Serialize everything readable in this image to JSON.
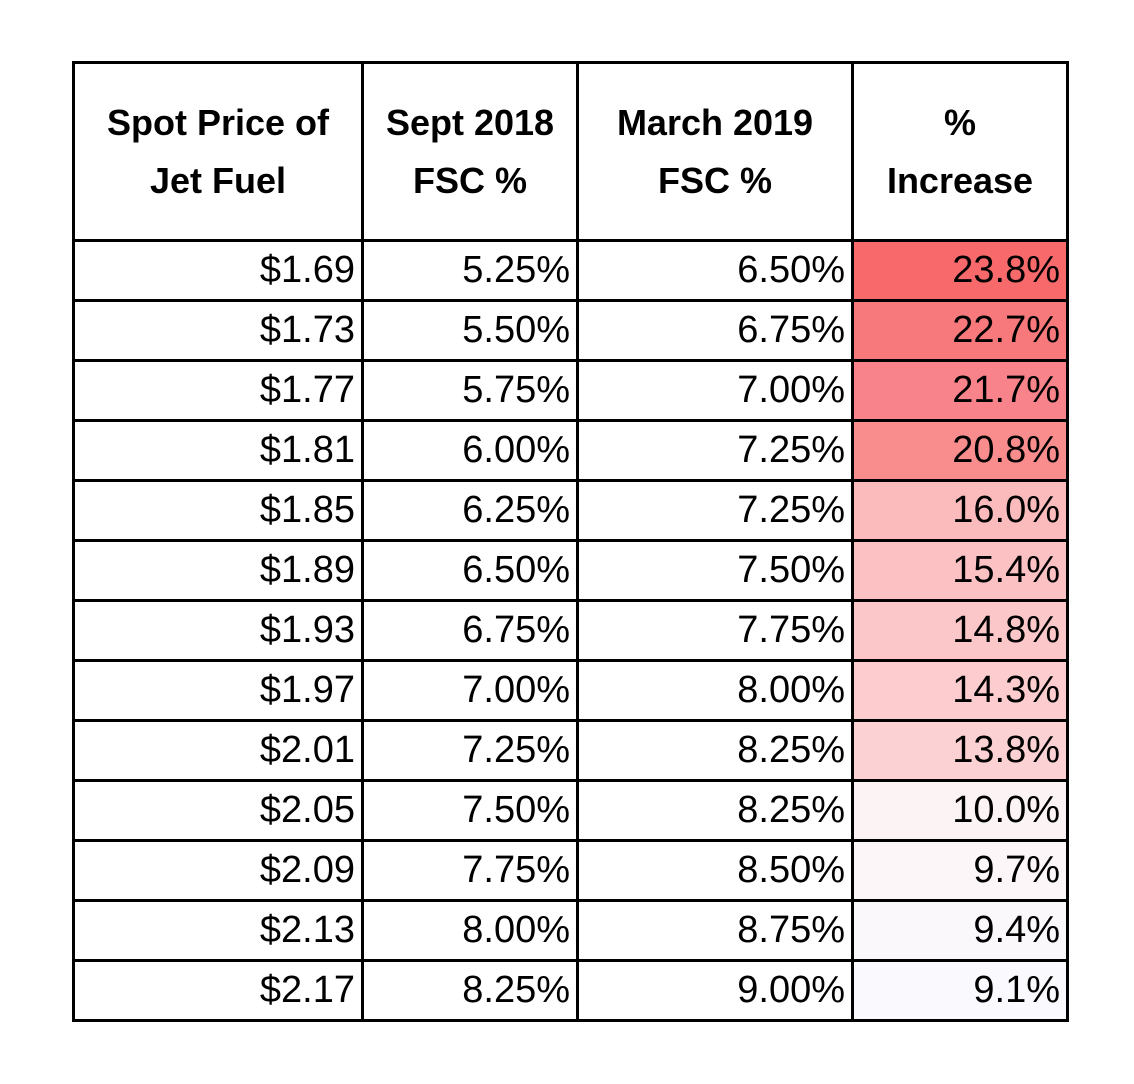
{
  "chart_data": {
    "type": "table",
    "columns": [
      [
        "Spot Price of",
        "Jet Fuel"
      ],
      [
        "Sept 2018",
        "FSC %"
      ],
      [
        "March 2019",
        "FSC %"
      ],
      [
        "%",
        "Increase"
      ]
    ],
    "rows": [
      {
        "spot_price": "$1.69",
        "sept_2018": "5.25%",
        "march_2019": "6.50%",
        "increase": "23.8%",
        "increase_value": 23.8,
        "heat_color": "#f8696b"
      },
      {
        "spot_price": "$1.73",
        "sept_2018": "5.50%",
        "march_2019": "6.75%",
        "increase": "22.7%",
        "increase_value": 22.7,
        "heat_color": "#f8797b"
      },
      {
        "spot_price": "$1.77",
        "sept_2018": "5.75%",
        "march_2019": "7.00%",
        "increase": "21.7%",
        "increase_value": 21.7,
        "heat_color": "#f9838a"
      },
      {
        "spot_price": "$1.81",
        "sept_2018": "6.00%",
        "march_2019": "7.25%",
        "increase": "20.8%",
        "increase_value": 20.8,
        "heat_color": "#f98c8d"
      },
      {
        "spot_price": "$1.85",
        "sept_2018": "6.25%",
        "march_2019": "7.25%",
        "increase": "16.0%",
        "increase_value": 16.0,
        "heat_color": "#fbbbbd"
      },
      {
        "spot_price": "$1.89",
        "sept_2018": "6.50%",
        "march_2019": "7.50%",
        "increase": "15.4%",
        "increase_value": 15.4,
        "heat_color": "#fbc1c3"
      },
      {
        "spot_price": "$1.93",
        "sept_2018": "6.75%",
        "march_2019": "7.75%",
        "increase": "14.8%",
        "increase_value": 14.8,
        "heat_color": "#fbc7c9"
      },
      {
        "spot_price": "$1.97",
        "sept_2018": "7.00%",
        "march_2019": "8.00%",
        "increase": "14.3%",
        "increase_value": 14.3,
        "heat_color": "#fcccce"
      },
      {
        "spot_price": "$2.01",
        "sept_2018": "7.25%",
        "march_2019": "8.25%",
        "increase": "13.8%",
        "increase_value": 13.8,
        "heat_color": "#fcd1d3"
      },
      {
        "spot_price": "$2.05",
        "sept_2018": "7.50%",
        "march_2019": "8.25%",
        "increase": "10.0%",
        "increase_value": 10.0,
        "heat_color": "#fcf3f5"
      },
      {
        "spot_price": "$2.09",
        "sept_2018": "7.75%",
        "march_2019": "8.50%",
        "increase": "9.7%",
        "increase_value": 9.7,
        "heat_color": "#fcf6f8"
      },
      {
        "spot_price": "$2.13",
        "sept_2018": "8.00%",
        "march_2019": "8.75%",
        "increase": "9.4%",
        "increase_value": 9.4,
        "heat_color": "#fbf8fb"
      },
      {
        "spot_price": "$2.17",
        "sept_2018": "8.25%",
        "march_2019": "9.00%",
        "increase": "9.1%",
        "increase_value": 9.1,
        "heat_color": "#fafafe"
      }
    ]
  }
}
